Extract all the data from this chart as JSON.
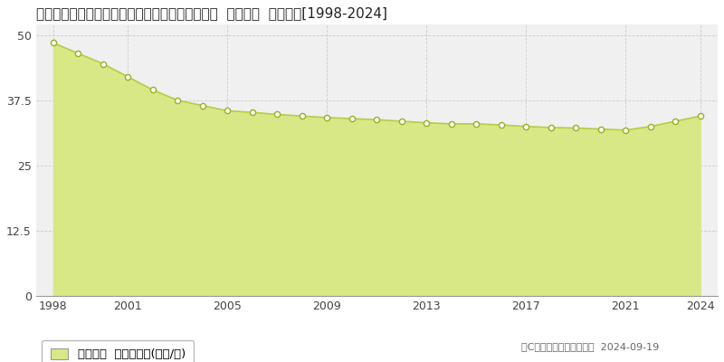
{
  "title": "愛知県知多郡東浦町大字藤江字大坪１５番１０外  公示地価  地価推移[1998-2024]",
  "years": [
    1998,
    1999,
    2000,
    2001,
    2002,
    2003,
    2004,
    2005,
    2006,
    2007,
    2008,
    2009,
    2010,
    2011,
    2012,
    2013,
    2014,
    2015,
    2016,
    2017,
    2018,
    2019,
    2020,
    2021,
    2022,
    2023,
    2024
  ],
  "values": [
    48.5,
    46.5,
    44.5,
    42.0,
    39.5,
    37.5,
    36.5,
    35.5,
    35.2,
    34.8,
    34.5,
    34.2,
    34.0,
    33.8,
    33.5,
    33.2,
    33.0,
    33.0,
    32.8,
    32.5,
    32.3,
    32.2,
    32.0,
    31.8,
    32.5,
    33.5,
    34.5
  ],
  "line_color": "#b8cc44",
  "fill_color": "#d8e887",
  "fill_alpha": 1.0,
  "marker_facecolor": "white",
  "marker_edgecolor": "#9ab020",
  "bg_color": "#ffffff",
  "plot_bg_color": "#f0f0f0",
  "grid_color": "#cccccc",
  "ylim": [
    0,
    52
  ],
  "yticks": [
    0,
    12.5,
    25,
    37.5,
    50
  ],
  "xticks": [
    1998,
    2001,
    2005,
    2009,
    2013,
    2017,
    2021,
    2024
  ],
  "legend_label": "公示地価  平均坪単価(万円/坪)",
  "copyright_text": "（C）土地価格ドットコム  2024-09-19",
  "title_fontsize": 11,
  "tick_fontsize": 9,
  "legend_fontsize": 9.5,
  "copyright_fontsize": 8
}
